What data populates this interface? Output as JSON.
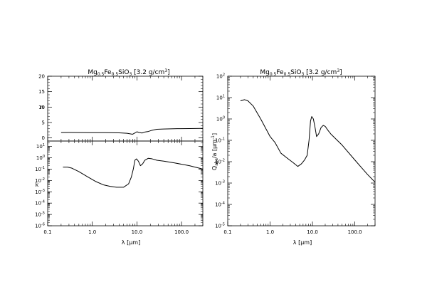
{
  "chart_data": [
    {
      "type": "line",
      "panel": "upper-left",
      "title": {
        "base": "Mg",
        "s1": "0.5",
        "b2": "Fe",
        "s2": "0.5",
        "b3": "SiO",
        "s3": "3",
        "rest": " [3.2 g/cm",
        "sup": "3",
        "end": "]"
      },
      "xlabel": "",
      "ylabel": "n",
      "x_scale": "log",
      "y_scale": "linear",
      "xlim": [
        0.1,
        300
      ],
      "ylim": [
        -1,
        20
      ],
      "y_ticks": [
        "0",
        "5",
        "10",
        "15",
        "20"
      ],
      "series": [
        {
          "x": [
            0.2,
            0.3,
            0.5,
            1.0,
            2.0,
            4.0,
            6.0,
            8.0,
            9.0,
            10.0,
            11.0,
            13.0,
            15.0,
            18.0,
            22.0,
            28.0,
            40.0,
            80.0,
            150.0,
            300.0
          ],
          "values": [
            1.75,
            1.77,
            1.75,
            1.72,
            1.7,
            1.65,
            1.5,
            1.2,
            1.6,
            2.0,
            1.8,
            1.6,
            1.9,
            2.1,
            2.5,
            2.8,
            2.9,
            3.0,
            3.05,
            3.1
          ]
        }
      ],
      "grid": false
    },
    {
      "type": "line",
      "panel": "lower-left",
      "title": "",
      "xlabel": "λ [μm]",
      "ylabel": "k",
      "x_scale": "log",
      "y_scale": "log",
      "xlim": [
        0.1,
        300
      ],
      "ylim": [
        1e-06,
        30
      ],
      "x_ticks": [
        "0.1",
        "1.0",
        "10.0",
        "100.0"
      ],
      "y_ticks": [
        {
          "b": "10",
          "e": "1"
        },
        {
          "b": "10",
          "e": "0"
        },
        {
          "b": "10",
          "e": "-1"
        },
        {
          "b": "10",
          "e": "-2"
        },
        {
          "b": "10",
          "e": "-3"
        },
        {
          "b": "10",
          "e": "-4"
        },
        {
          "b": "10",
          "e": "-5"
        },
        {
          "b": "10",
          "e": "-6"
        }
      ],
      "series": [
        {
          "x": [
            0.22,
            0.28,
            0.35,
            0.5,
            0.8,
            1.2,
            1.8,
            2.5,
            3.5,
            5.0,
            6.5,
            7.5,
            8.3,
            9.0,
            9.8,
            10.8,
            12.0,
            13.5,
            15.0,
            18.0,
            22.0,
            28.0,
            40.0,
            70.0,
            150.0,
            300.0
          ],
          "values": [
            0.15,
            0.15,
            0.12,
            0.06,
            0.02,
            0.008,
            0.004,
            0.003,
            0.0025,
            0.0025,
            0.005,
            0.02,
            0.1,
            0.6,
            0.8,
            0.5,
            0.2,
            0.3,
            0.6,
            0.9,
            0.8,
            0.6,
            0.5,
            0.35,
            0.2,
            0.1
          ]
        }
      ],
      "grid": false
    },
    {
      "type": "line",
      "panel": "right",
      "title": {
        "base": "Mg",
        "s1": "0.5",
        "b2": "Fe",
        "s2": "0.5",
        "b3": "SiO",
        "s3": "3",
        "rest": " [3.2 g/cm",
        "sup": "3",
        "end": "]"
      },
      "xlabel": "λ [μm]",
      "ylabel": {
        "base": "Q",
        "sub": "abs",
        "rest": "/a [μm",
        "sup": "-1",
        "end": "]"
      },
      "x_scale": "log",
      "y_scale": "log",
      "xlim": [
        0.1,
        300
      ],
      "ylim": [
        1e-05,
        100
      ],
      "x_ticks": [
        "0.1",
        "1.0",
        "10.0",
        "100.0"
      ],
      "y_ticks": [
        {
          "b": "10",
          "e": "2"
        },
        {
          "b": "10",
          "e": "1"
        },
        {
          "b": "10",
          "e": "0"
        },
        {
          "b": "10",
          "e": "-1"
        },
        {
          "b": "10",
          "e": "-2"
        },
        {
          "b": "10",
          "e": "-3"
        },
        {
          "b": "10",
          "e": "-4"
        },
        {
          "b": "10",
          "e": "-5"
        }
      ],
      "series": [
        {
          "x": [
            0.2,
            0.25,
            0.3,
            0.4,
            0.6,
            1.0,
            1.3,
            1.8,
            2.5,
            3.5,
            4.5,
            5.5,
            6.5,
            7.5,
            8.3,
            9.0,
            9.6,
            10.5,
            11.5,
            12.5,
            14.0,
            16.0,
            18.0,
            20.0,
            23.0,
            27.0,
            35.0,
            50.0,
            100.0,
            200.0,
            300.0
          ],
          "values": [
            7.0,
            8.0,
            7.0,
            4.0,
            1.0,
            0.15,
            0.08,
            0.025,
            0.015,
            0.009,
            0.006,
            0.008,
            0.012,
            0.02,
            0.1,
            0.8,
            1.3,
            1.0,
            0.4,
            0.15,
            0.2,
            0.4,
            0.5,
            0.45,
            0.3,
            0.2,
            0.12,
            0.06,
            0.012,
            0.0025,
            0.0011
          ]
        }
      ],
      "grid": false
    }
  ]
}
